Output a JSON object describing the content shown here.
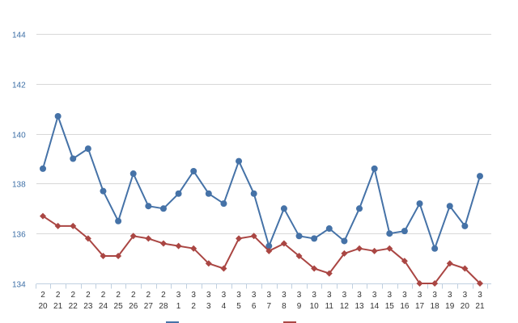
{
  "chart_data": {
    "type": "line",
    "x": [
      [
        "2",
        "20"
      ],
      [
        "2",
        "21"
      ],
      [
        "2",
        "22"
      ],
      [
        "2",
        "23"
      ],
      [
        "2",
        "24"
      ],
      [
        "2",
        "25"
      ],
      [
        "2",
        "26"
      ],
      [
        "2",
        "27"
      ],
      [
        "2",
        "28"
      ],
      [
        "3",
        "1"
      ],
      [
        "3",
        "2"
      ],
      [
        "3",
        "3"
      ],
      [
        "3",
        "4"
      ],
      [
        "3",
        "5"
      ],
      [
        "3",
        "6"
      ],
      [
        "3",
        "7"
      ],
      [
        "3",
        "8"
      ],
      [
        "3",
        "9"
      ],
      [
        "3",
        "10"
      ],
      [
        "3",
        "11"
      ],
      [
        "3",
        "12"
      ],
      [
        "3",
        "13"
      ],
      [
        "3",
        "14"
      ],
      [
        "3",
        "15"
      ],
      [
        "3",
        "16"
      ],
      [
        "3",
        "17"
      ],
      [
        "3",
        "18"
      ],
      [
        "3",
        "19"
      ],
      [
        "3",
        "20"
      ],
      [
        "3",
        "21"
      ]
    ],
    "series": [
      {
        "color": "#4572a7",
        "marker": "circle",
        "values": [
          138.6,
          140.7,
          139.0,
          139.4,
          137.7,
          136.5,
          138.4,
          137.1,
          137.0,
          137.6,
          138.5,
          137.6,
          137.2,
          138.9,
          137.6,
          135.5,
          137.0,
          135.9,
          135.8,
          136.2,
          135.7,
          137.0,
          138.6,
          136.0,
          136.1,
          137.2,
          135.4,
          137.1,
          136.3,
          138.3
        ]
      },
      {
        "color": "#aa4643",
        "marker": "diamond",
        "values": [
          136.7,
          136.3,
          136.3,
          135.8,
          135.1,
          135.1,
          135.9,
          135.8,
          135.6,
          135.5,
          135.4,
          134.8,
          134.6,
          135.8,
          135.9,
          135.3,
          135.6,
          135.1,
          134.6,
          134.4,
          135.2,
          135.4,
          135.3,
          135.4,
          134.9,
          134.0,
          134.0,
          134.8,
          134.6,
          134.0
        ]
      }
    ],
    "ylim": [
      134,
      144
    ],
    "yticks": [
      134,
      136,
      138,
      140,
      142,
      144
    ],
    "grid": true,
    "legend": "bottom"
  }
}
